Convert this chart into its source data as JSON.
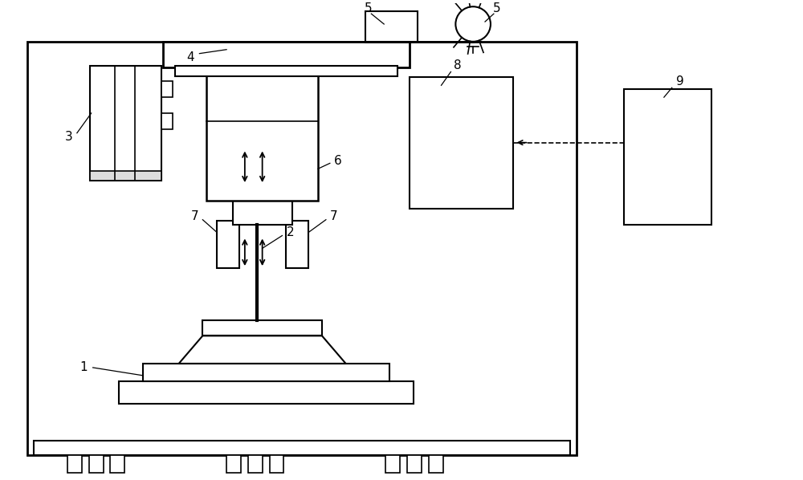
{
  "bg_color": "#ffffff",
  "line_color": "#000000",
  "figsize": [
    10.0,
    5.98
  ],
  "dpi": 100
}
